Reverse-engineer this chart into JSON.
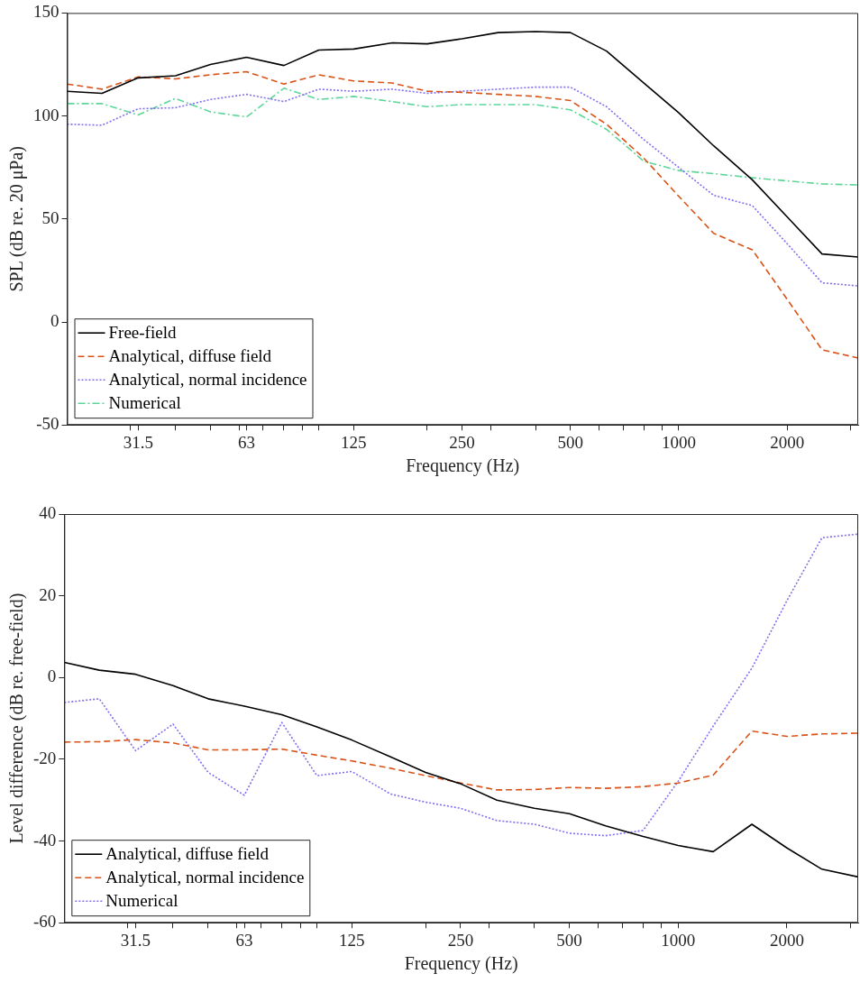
{
  "chart_data": [
    {
      "type": "line",
      "xlabel": "Frequency (Hz)",
      "ylabel": "SPL (dB re. 20 μPa)",
      "log": "x",
      "x": [
        20,
        25,
        31.5,
        40,
        50,
        63,
        80,
        100,
        125,
        160,
        200,
        250,
        315,
        400,
        500,
        630,
        800,
        1000,
        1250,
        1600,
        2000,
        2500,
        3150
      ],
      "xlim": [
        20,
        3150
      ],
      "xticks": [
        {
          "value": 30,
          "label": null
        },
        31.5,
        {
          "value": 40,
          "label": null
        },
        {
          "value": 50,
          "label": null
        },
        {
          "value": 60,
          "label": null
        },
        63,
        {
          "value": 70,
          "label": null
        },
        {
          "value": 80,
          "label": null
        },
        {
          "value": 90,
          "label": null
        },
        {
          "value": 100,
          "label": null
        },
        125,
        {
          "value": 200,
          "label": null
        },
        250,
        {
          "value": 300,
          "label": null
        },
        {
          "value": 400,
          "label": null
        },
        500,
        {
          "value": 600,
          "label": null
        },
        {
          "value": 700,
          "label": null
        },
        {
          "value": 800,
          "label": null
        },
        {
          "value": 900,
          "label": null
        },
        1000,
        2000,
        {
          "value": 3000,
          "label": null
        }
      ],
      "ylim": [
        -50,
        150
      ],
      "yticks": [
        -50,
        0,
        50,
        100,
        150
      ],
      "grid": false,
      "legend": "bottom left",
      "marker": "none",
      "series": [
        {
          "name": "Free-field",
          "color": "#000000",
          "line_style": "solid",
          "values": [
            112,
            111,
            118.5,
            119.5,
            125,
            128.5,
            124.5,
            132,
            132.5,
            135.5,
            135,
            137.5,
            140.5,
            141,
            140.5,
            131.5,
            116,
            101.5,
            85.5,
            69,
            51,
            33,
            31.5
          ]
        },
        {
          "name": "Analytical, diffuse field",
          "color": "#d95319",
          "line_style": "dashed",
          "values": [
            115.5,
            113,
            119,
            118,
            120,
            121.5,
            115.5,
            120,
            117,
            116,
            112,
            111.5,
            110.5,
            109.5,
            107.5,
            96,
            79.5,
            61,
            43,
            35,
            11,
            -13.5,
            -17.5
          ]
        },
        {
          "name": "Analytical, normal incidence",
          "color": "#7e6ff0",
          "line_style": "dotted",
          "values": [
            96,
            95.5,
            103.5,
            104,
            108,
            110.5,
            107,
            113,
            112,
            113,
            111,
            112,
            113,
            114,
            114,
            104.5,
            88.5,
            75,
            61.5,
            56.5,
            38,
            19,
            17.5
          ]
        },
        {
          "name": "Numerical",
          "color": "#5ed699",
          "line_style": "dashdot",
          "values": [
            106,
            106,
            100.5,
            108.5,
            102,
            99.5,
            113.5,
            108,
            109.5,
            107,
            104.5,
            105.5,
            105.5,
            105.5,
            103,
            93.5,
            78,
            73.5,
            72,
            70,
            68.5,
            67,
            66.5
          ]
        }
      ]
    },
    {
      "type": "line",
      "xlabel": "Frequency (Hz)",
      "ylabel": "Level difference (dB re. free-field)",
      "log": "x",
      "x": [
        20,
        25,
        31.5,
        40,
        50,
        63,
        80,
        100,
        125,
        160,
        200,
        250,
        315,
        400,
        500,
        630,
        800,
        1000,
        1250,
        1600,
        2000,
        2500,
        3150
      ],
      "xlim": [
        20,
        3150
      ],
      "xticks": [
        {
          "value": 30,
          "label": null
        },
        31.5,
        {
          "value": 40,
          "label": null
        },
        {
          "value": 50,
          "label": null
        },
        {
          "value": 60,
          "label": null
        },
        63,
        {
          "value": 70,
          "label": null
        },
        {
          "value": 80,
          "label": null
        },
        {
          "value": 90,
          "label": null
        },
        {
          "value": 100,
          "label": null
        },
        125,
        {
          "value": 200,
          "label": null
        },
        250,
        {
          "value": 300,
          "label": null
        },
        {
          "value": 400,
          "label": null
        },
        500,
        {
          "value": 600,
          "label": null
        },
        {
          "value": 700,
          "label": null
        },
        {
          "value": 800,
          "label": null
        },
        {
          "value": 900,
          "label": null
        },
        1000,
        2000,
        {
          "value": 3000,
          "label": null
        }
      ],
      "ylim": [
        -60,
        40
      ],
      "yticks": [
        -60,
        -40,
        -20,
        0,
        20,
        40
      ],
      "grid": false,
      "legend": "bottom left",
      "marker": "none",
      "series": [
        {
          "name": "Analytical, diffuse field",
          "color": "#000000",
          "line_style": "solid",
          "values": [
            3.7,
            1.8,
            0.8,
            -2,
            -5.2,
            -7,
            -9.1,
            -12.1,
            -15.3,
            -19.4,
            -23.2,
            -26,
            -30,
            -32,
            -33.3,
            -36.3,
            -38.9,
            -41.1,
            -42.6,
            -35.9,
            -41.7,
            -46.9,
            -48.8
          ]
        },
        {
          "name": "Analytical, normal incidence",
          "color": "#d95319",
          "line_style": "dashed",
          "values": [
            -15.8,
            -15.7,
            -15.2,
            -16,
            -17.7,
            -17.7,
            -17.5,
            -19,
            -20.4,
            -22.2,
            -24,
            -25.8,
            -27.5,
            -27.4,
            -26.9,
            -27.1,
            -26.7,
            -25.8,
            -23.9,
            -13.1,
            -14.4,
            -13.8,
            -13.6
          ]
        },
        {
          "name": "Numerical",
          "color": "#7e6ff0",
          "line_style": "dotted",
          "values": [
            -6.1,
            -5.2,
            -17.9,
            -11.4,
            -23.2,
            -28.8,
            -11,
            -24,
            -23,
            -28.5,
            -30.5,
            -32,
            -35,
            -35.9,
            -38.1,
            -38.7,
            -37.4,
            -25.4,
            -11.9,
            2.3,
            18.8,
            34.2,
            35.1
          ]
        }
      ]
    }
  ]
}
